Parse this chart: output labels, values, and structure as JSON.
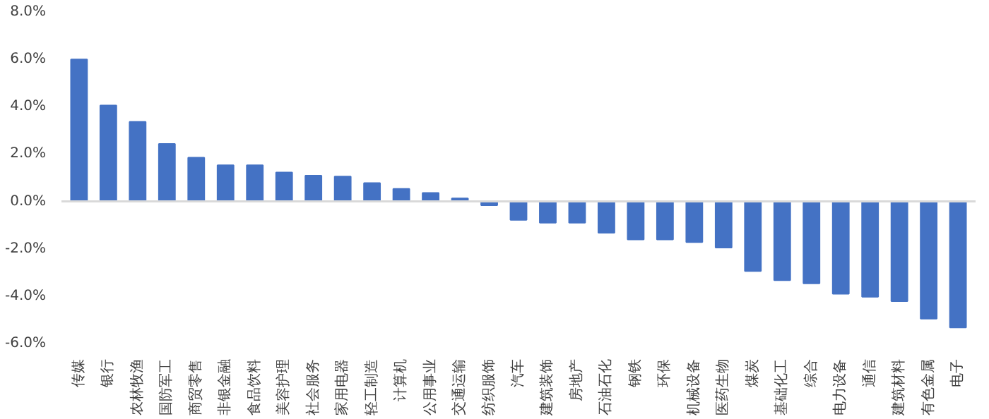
{
  "chart_data": {
    "type": "bar",
    "categories": [
      "传媒",
      "银行",
      "农林牧渔",
      "国防军工",
      "商贸零售",
      "非银金融",
      "食品饮料",
      "美容护理",
      "社会服务",
      "家用电器",
      "轻工制造",
      "计算机",
      "公用事业",
      "交通运输",
      "纺织服饰",
      "汽车",
      "建筑装饰",
      "房地产",
      "石油石化",
      "钢铁",
      "环保",
      "机械设备",
      "医药生物",
      "煤炭",
      "基础化工",
      "综合",
      "电力设备",
      "通信",
      "建筑材料",
      "有色金属",
      "电子"
    ],
    "values": [
      6.0,
      4.05,
      3.36,
      2.43,
      1.85,
      1.53,
      1.53,
      1.22,
      1.09,
      1.05,
      0.78,
      0.53,
      0.36,
      0.13,
      -0.16,
      -0.78,
      -0.9,
      -0.9,
      -1.32,
      -1.61,
      -1.61,
      -1.72,
      -1.95,
      -2.94,
      -3.33,
      -3.46,
      -3.9,
      -4.03,
      -4.21,
      -4.95,
      -5.32
    ],
    "color": "#4472c4",
    "ylim": [
      -6,
      8
    ],
    "yticks": [
      {
        "value": -6,
        "label": "-6.0%"
      },
      {
        "value": -4,
        "label": "-4.0%"
      },
      {
        "value": -2,
        "label": "-2.0%"
      },
      {
        "value": 0,
        "label": "0.0%"
      },
      {
        "value": 2,
        "label": "2.0%"
      },
      {
        "value": 4,
        "label": "4.0%"
      },
      {
        "value": 6,
        "label": "6.0%"
      },
      {
        "value": 8,
        "label": "8.0%"
      }
    ],
    "ref_lines": [
      {
        "axis": "y",
        "value": 0,
        "color": "#d9d9d9"
      }
    ]
  }
}
